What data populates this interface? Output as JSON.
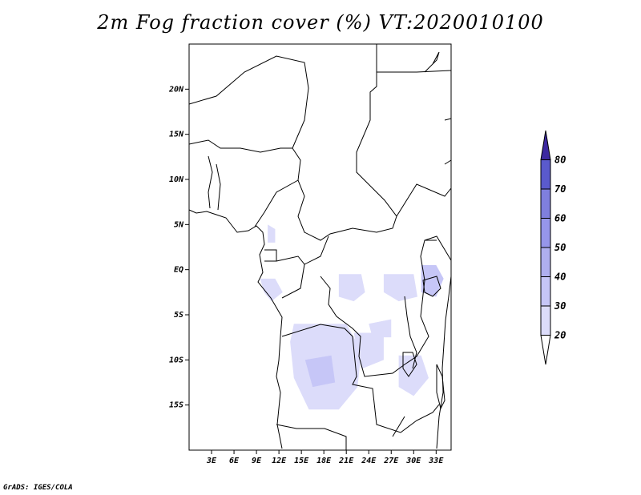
{
  "title": "2m Fog fraction cover (%) VT:2020010100",
  "credit": "GrADS: IGES/COLA",
  "map": {
    "lon_range": [
      0,
      35
    ],
    "lat_range": [
      -20,
      25
    ],
    "lat_ticks": [
      {
        "value": 20,
        "label": "20N"
      },
      {
        "value": 15,
        "label": "15N"
      },
      {
        "value": 10,
        "label": "10N"
      },
      {
        "value": 5,
        "label": "5N"
      },
      {
        "value": 0,
        "label": "EQ"
      },
      {
        "value": -5,
        "label": "5S"
      },
      {
        "value": -10,
        "label": "10S"
      },
      {
        "value": -15,
        "label": "15S"
      }
    ],
    "lon_ticks": [
      {
        "value": 3,
        "label": "3E"
      },
      {
        "value": 6,
        "label": "6E"
      },
      {
        "value": 9,
        "label": "9E"
      },
      {
        "value": 12,
        "label": "12E"
      },
      {
        "value": 15,
        "label": "15E"
      },
      {
        "value": 18,
        "label": "18E"
      },
      {
        "value": 21,
        "label": "21E"
      },
      {
        "value": 24,
        "label": "24E"
      },
      {
        "value": 27,
        "label": "27E"
      },
      {
        "value": 30,
        "label": "30E"
      },
      {
        "value": 33,
        "label": "33E"
      }
    ]
  },
  "colorbar": {
    "levels": [
      "20",
      "30",
      "40",
      "50",
      "60",
      "70",
      "80"
    ],
    "colors": [
      "#ffffff",
      "#dcdcfa",
      "#c6c6f7",
      "#afafef",
      "#9696ea",
      "#7f7fde",
      "#5a5acd",
      "#3c28a0"
    ]
  },
  "fog_regions": [
    {
      "shade": 1,
      "points": [
        [
          10.5,
          5
        ],
        [
          11.5,
          4.5
        ],
        [
          11.5,
          3
        ],
        [
          10.5,
          3
        ]
      ]
    },
    {
      "shade": 1,
      "points": [
        [
          9.5,
          -1
        ],
        [
          11.5,
          -1
        ],
        [
          12.5,
          -2.5
        ],
        [
          11,
          -3.5
        ],
        [
          10,
          -2.5
        ]
      ]
    },
    {
      "shade": 1,
      "points": [
        [
          20,
          -0.5
        ],
        [
          23,
          -0.5
        ],
        [
          23.5,
          -2.5
        ],
        [
          22,
          -3.5
        ],
        [
          20,
          -3
        ]
      ]
    },
    {
      "shade": 1,
      "points": [
        [
          26,
          -0.5
        ],
        [
          30,
          -0.5
        ],
        [
          30.5,
          -3
        ],
        [
          28,
          -3.5
        ],
        [
          26,
          -2.5
        ]
      ]
    },
    {
      "shade": 2,
      "points": [
        [
          31,
          0.5
        ],
        [
          33,
          0.5
        ],
        [
          34,
          -1
        ],
        [
          33,
          -3
        ],
        [
          31,
          -2.5
        ]
      ]
    },
    {
      "shade": 1,
      "points": [
        [
          14,
          -6
        ],
        [
          21,
          -6
        ],
        [
          23,
          -9
        ],
        [
          22.5,
          -13
        ],
        [
          20,
          -15.5
        ],
        [
          16,
          -15.5
        ],
        [
          14,
          -12
        ],
        [
          13.5,
          -8
        ]
      ]
    },
    {
      "shade": 2,
      "points": [
        [
          15.5,
          -10
        ],
        [
          19,
          -9.5
        ],
        [
          19.5,
          -12.5
        ],
        [
          16.5,
          -13
        ]
      ]
    },
    {
      "shade": 1,
      "points": [
        [
          22,
          -7
        ],
        [
          26,
          -7
        ],
        [
          26,
          -10
        ],
        [
          23,
          -11
        ]
      ]
    },
    {
      "shade": 1,
      "points": [
        [
          28,
          -9.5
        ],
        [
          31,
          -9.5
        ],
        [
          32,
          -12
        ],
        [
          30,
          -14
        ],
        [
          28,
          -13
        ]
      ]
    },
    {
      "shade": 1,
      "points": [
        [
          24,
          -6
        ],
        [
          27,
          -5.5
        ],
        [
          27,
          -7.5
        ],
        [
          24.5,
          -7.5
        ]
      ]
    }
  ]
}
